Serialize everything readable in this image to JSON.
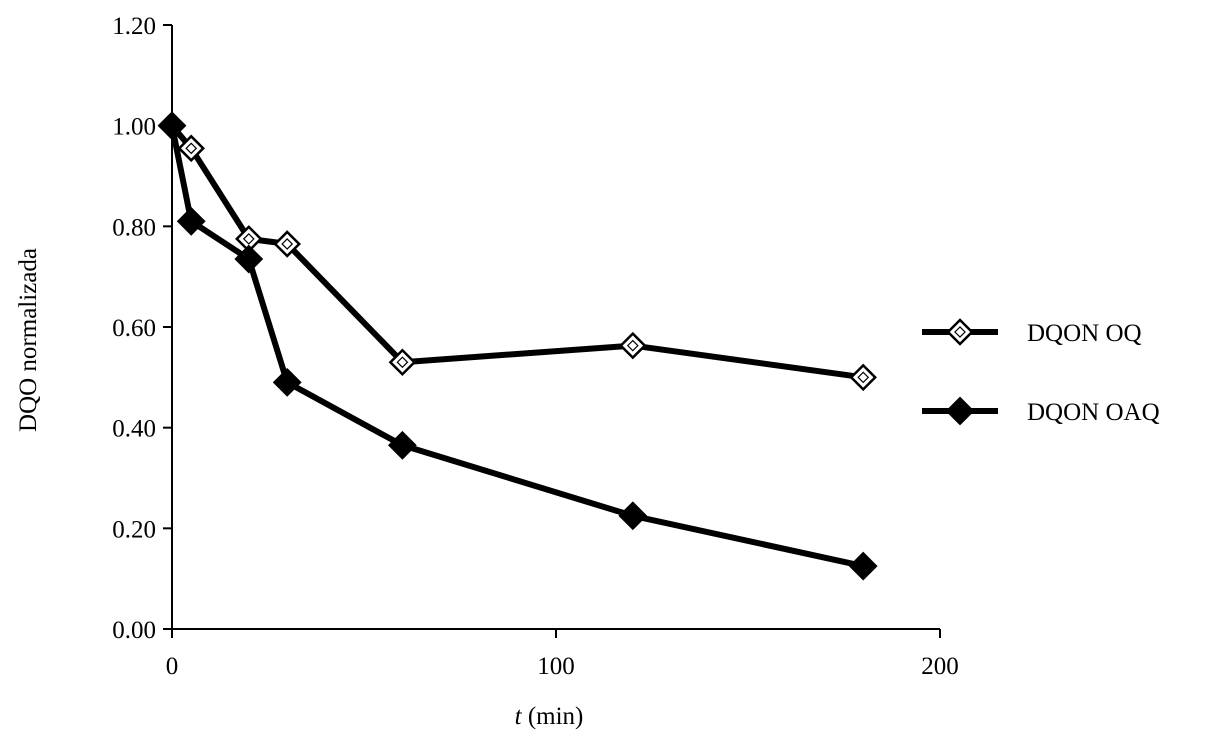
{
  "chart_data": {
    "type": "line",
    "xlabel_italic": "t",
    "xlabel_rest": " (min)",
    "ylabel": "DQO normalizada",
    "xlim": [
      0,
      200
    ],
    "ylim": [
      0,
      1.2
    ],
    "xticks": [
      0,
      100,
      200
    ],
    "xtick_labels": [
      "0",
      "100",
      "200"
    ],
    "yticks": [
      0,
      0.2,
      0.4,
      0.6,
      0.8,
      1.0,
      1.2
    ],
    "ytick_labels": [
      "0.00",
      "0.20",
      "0.40",
      "0.60",
      "0.80",
      "1.00",
      "1.20"
    ],
    "grid": false,
    "legend_position": "right",
    "line_color": "#000000",
    "series": [
      {
        "name": "DQON OQ",
        "marker": "open-diamond",
        "x": [
          0,
          5,
          20,
          30,
          60,
          120,
          180
        ],
        "y": [
          1.0,
          0.955,
          0.775,
          0.765,
          0.53,
          0.563,
          0.5
        ]
      },
      {
        "name": "DQON OAQ",
        "marker": "filled-diamond",
        "x": [
          0,
          5,
          20,
          30,
          60,
          120,
          180
        ],
        "y": [
          1.0,
          0.81,
          0.735,
          0.49,
          0.365,
          0.225,
          0.125
        ]
      }
    ]
  }
}
